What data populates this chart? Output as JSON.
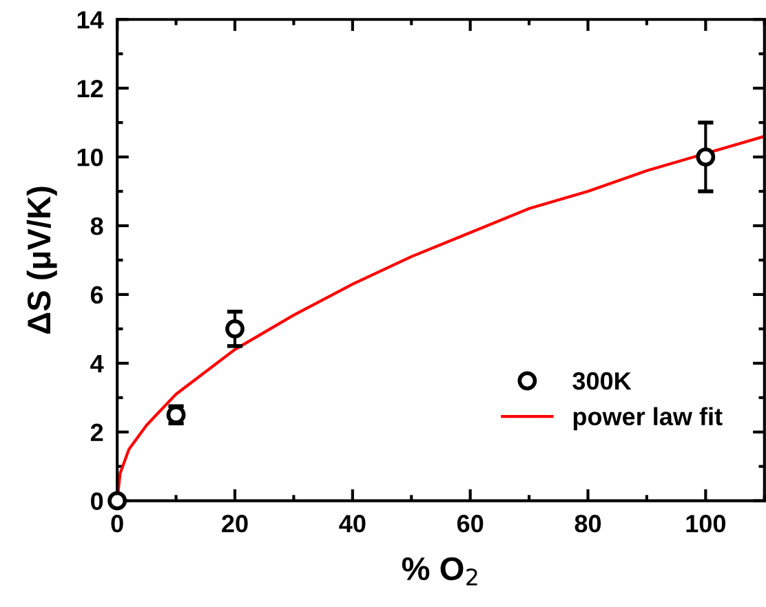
{
  "chart_data": {
    "type": "scatter",
    "xlabel": "% O$_{2}$",
    "ylabel": "ΔS (μV/K)",
    "xlim": [
      0,
      110
    ],
    "ylim": [
      0,
      14
    ],
    "xticks": [
      0,
      20,
      40,
      60,
      80,
      100
    ],
    "yticks": [
      0,
      2,
      4,
      6,
      8,
      10,
      12,
      14
    ],
    "legend": "bottom right",
    "grid": false,
    "series": [
      {
        "name": "300K",
        "color": "#000000",
        "marker": "circle",
        "x": [
          0,
          10,
          20,
          100
        ],
        "values": [
          0,
          2.5,
          5,
          10
        ],
        "errors": [
          null,
          0.25,
          0.5,
          1
        ]
      },
      {
        "name": "power law fit",
        "type": "line",
        "color": "#ff0000",
        "line_style": "solid",
        "x": [
          0,
          0.5,
          2,
          5,
          10,
          20,
          30,
          40,
          50,
          60,
          70,
          80,
          90,
          100,
          110
        ],
        "values": [
          0,
          0.8,
          1.5,
          2.2,
          3.1,
          4.4,
          5.4,
          6.3,
          7.1,
          7.8,
          8.5,
          9.0,
          9.6,
          10.1,
          10.6
        ]
      }
    ]
  }
}
